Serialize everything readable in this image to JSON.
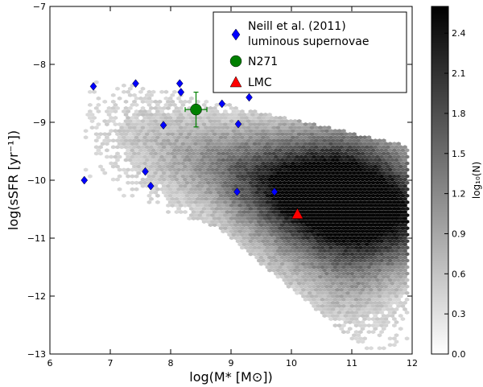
{
  "chart_data": {
    "type": "scatter",
    "xlabel": "log(M* [M⊙])",
    "ylabel": "log(sSFR [yr⁻¹])",
    "xlim": [
      6,
      12
    ],
    "ylim": [
      -13,
      -7
    ],
    "xticks": [
      "6",
      "7",
      "8",
      "9",
      "10",
      "11",
      "12"
    ],
    "yticks": [
      "−13",
      "−12",
      "−11",
      "−10",
      "−9",
      "−8",
      "−7"
    ],
    "grid": false,
    "legend_position": "top-right",
    "series": [
      {
        "name": "Neill et al. (2011) luminous supernovae",
        "marker": "diamond",
        "color": "#0000ff",
        "points": [
          [
            6.72,
            -8.38
          ],
          [
            7.42,
            -8.33
          ],
          [
            8.15,
            -8.33
          ],
          [
            8.17,
            -8.48
          ],
          [
            8.85,
            -8.68
          ],
          [
            9.3,
            -8.57
          ],
          [
            7.88,
            -9.05
          ],
          [
            9.12,
            -9.03
          ],
          [
            7.58,
            -9.85
          ],
          [
            7.67,
            -10.1
          ],
          [
            6.57,
            -10.0
          ],
          [
            9.1,
            -10.2
          ],
          [
            9.72,
            -10.2
          ]
        ]
      },
      {
        "name": "N271",
        "marker": "circle",
        "color": "#008000",
        "points": [
          [
            8.42,
            -8.78
          ]
        ],
        "xerr": 0.18,
        "yerr": 0.3
      },
      {
        "name": "LMC",
        "marker": "triangle",
        "color": "#ff0000",
        "points": [
          [
            10.1,
            -10.58
          ]
        ]
      }
    ],
    "density": {
      "type": "hexbin",
      "colormap": "gray_r",
      "label": "log₁₀(N)",
      "vmin": 0.0,
      "vmax": 2.6,
      "colorbar_ticks": [
        "0.0",
        "0.3",
        "0.6",
        "0.9",
        "1.2",
        "1.5",
        "1.8",
        "2.1",
        "2.4"
      ],
      "peak": [
        10.8,
        -10.25
      ]
    }
  }
}
